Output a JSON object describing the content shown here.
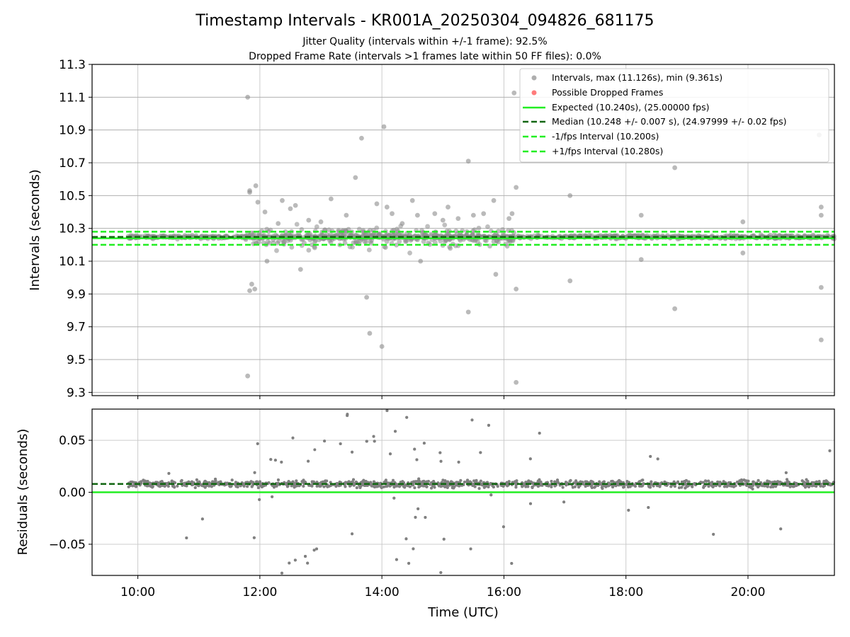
{
  "chart_data": [
    {
      "type": "scatter",
      "title": "Timestamp Intervals - KR001A_20250304_094826_681175",
      "subtitle_1": "Jitter Quality (intervals within +/-1 frame): 92.5%",
      "subtitle_2": "Dropped Frame Rate (intervals >1 frames late within 50 FF files): 0.0%",
      "xlabel": "",
      "ylabel": "Intervals (seconds)",
      "xlim": [
        "09:15",
        "21:25"
      ],
      "ylim": [
        9.28,
        11.3
      ],
      "yticks": [
        "9.3",
        "9.5",
        "9.7",
        "9.9",
        "10.1",
        "10.3",
        "10.5",
        "10.7",
        "10.9",
        "11.1",
        "11.3"
      ],
      "grid": true,
      "legend_position": "top-right",
      "legend": [
        "Intervals, max (11.126s), min (9.361s)",
        "Possible Dropped Frames",
        "Expected (10.240s), (25.00000 fps)",
        "Median (10.248 +/- 0.007 s), (24.97999 +/- 0.02 fps)",
        "-1/fps Interval (10.200s)",
        "+1/fps Interval (10.280s)"
      ],
      "reference_lines": [
        {
          "label": "Expected",
          "y": 10.24,
          "color": "#22ee22",
          "style": "solid"
        },
        {
          "label": "Median",
          "y": 10.248,
          "color": "#116611",
          "style": "dashed"
        },
        {
          "label": "-1/fps Interval",
          "y": 10.2,
          "color": "#22ee22",
          "style": "dashed"
        },
        {
          "label": "+1/fps Interval",
          "y": 10.28,
          "color": "#22ee22",
          "style": "dashed"
        }
      ],
      "series": [
        {
          "name": "Intervals",
          "color": "#8c8c8c",
          "points": [
            [
              "11:48",
              11.1
            ],
            [
              "11:48",
              9.4
            ],
            [
              "11:50",
              10.53
            ],
            [
              "11:50",
              10.52
            ],
            [
              "11:52",
              9.96
            ],
            [
              "11:50",
              9.92
            ],
            [
              "11:55",
              9.93
            ],
            [
              "11:56",
              10.56
            ],
            [
              "11:58",
              10.46
            ],
            [
              "12:05",
              10.4
            ],
            [
              "12:07",
              10.1
            ],
            [
              "12:18",
              10.33
            ],
            [
              "12:22",
              10.47
            ],
            [
              "12:30",
              10.42
            ],
            [
              "12:35",
              10.44
            ],
            [
              "12:40",
              10.05
            ],
            [
              "12:48",
              10.35
            ],
            [
              "13:00",
              10.34
            ],
            [
              "13:10",
              10.48
            ],
            [
              "13:25",
              10.38
            ],
            [
              "13:34",
              10.61
            ],
            [
              "13:40",
              10.85
            ],
            [
              "13:45",
              9.88
            ],
            [
              "13:48",
              9.66
            ],
            [
              "13:55",
              10.45
            ],
            [
              "14:00",
              9.58
            ],
            [
              "14:02",
              10.92
            ],
            [
              "14:05",
              10.43
            ],
            [
              "14:10",
              10.39
            ],
            [
              "14:20",
              10.33
            ],
            [
              "14:30",
              10.47
            ],
            [
              "14:35",
              10.38
            ],
            [
              "14:38",
              10.1
            ],
            [
              "14:45",
              10.25
            ],
            [
              "14:52",
              10.39
            ],
            [
              "15:00",
              10.35
            ],
            [
              "15:05",
              10.43
            ],
            [
              "15:15",
              10.36
            ],
            [
              "15:25",
              10.71
            ],
            [
              "15:25",
              9.79
            ],
            [
              "15:30",
              10.38
            ],
            [
              "15:40",
              10.39
            ],
            [
              "15:50",
              10.47
            ],
            [
              "15:52",
              10.02
            ],
            [
              "16:05",
              10.36
            ],
            [
              "16:08",
              10.39
            ],
            [
              "16:10",
              11.126
            ],
            [
              "16:12",
              10.55
            ],
            [
              "16:12",
              9.93
            ],
            [
              "16:12",
              9.361
            ],
            [
              "17:05",
              10.5
            ],
            [
              "17:05",
              9.98
            ],
            [
              "18:15",
              10.38
            ],
            [
              "18:15",
              10.11
            ],
            [
              "18:48",
              10.67
            ],
            [
              "18:48",
              9.81
            ],
            [
              "19:55",
              10.34
            ],
            [
              "19:55",
              10.15
            ],
            [
              "21:10",
              10.87
            ],
            [
              "21:12",
              10.43
            ],
            [
              "21:12",
              10.38
            ],
            [
              "21:12",
              9.94
            ],
            [
              "21:12",
              9.62
            ]
          ],
          "dense_band": {
            "x_range": [
              "09:50",
              "21:25"
            ],
            "y_center": 10.248,
            "note": "thousands of overlapping points between 10.20 and 10.30"
          }
        },
        {
          "name": "Possible Dropped Frames",
          "color": "#ff4444",
          "points": []
        }
      ]
    },
    {
      "type": "scatter",
      "title": "",
      "xlabel": "Time (UTC)",
      "ylabel": "Residuals (seconds)",
      "xlim": [
        "09:15",
        "21:25"
      ],
      "xticks": [
        "10:00",
        "12:00",
        "14:00",
        "16:00",
        "18:00",
        "20:00"
      ],
      "ylim": [
        -0.08,
        0.08
      ],
      "yticks": [
        "−0.05",
        "0.00",
        "0.05"
      ],
      "grid": true,
      "reference_lines": [
        {
          "label": "Expected",
          "y": 0.0,
          "color": "#22ee22",
          "style": "solid"
        },
        {
          "label": "Median",
          "y": 0.008,
          "color": "#116611",
          "style": "dashed"
        }
      ],
      "series": [
        {
          "name": "Residuals",
          "color": "#808080",
          "band": {
            "x_range": [
              "09:50",
              "21:25"
            ],
            "y_center": 0.008,
            "y_spread": 0.012,
            "wide_spread_x_range": [
              "11:45",
              "16:10"
            ],
            "wide_spread": 0.08
          }
        }
      ]
    }
  ]
}
